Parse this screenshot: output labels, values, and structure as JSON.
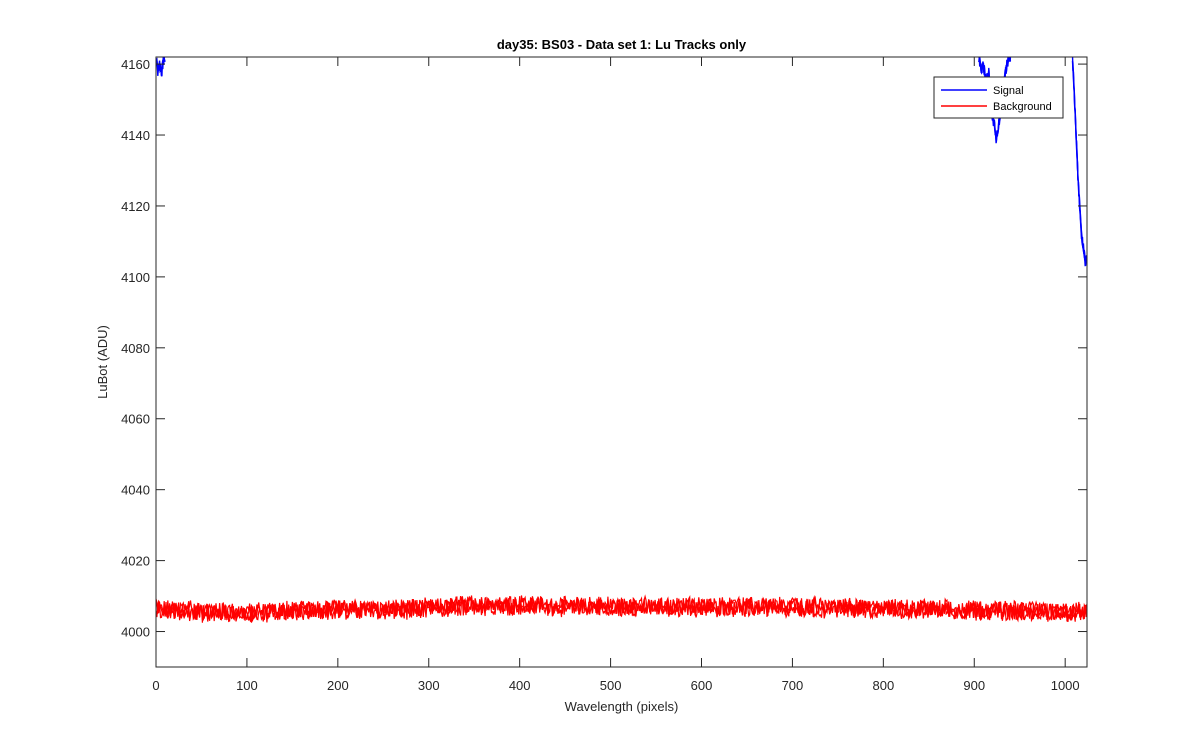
{
  "chart_data": {
    "type": "line",
    "title": "day35: BS03 - Data set 1: Lu Tracks only",
    "xlabel": "Wavelength (pixels)",
    "ylabel": "LuBot (ADU)",
    "xlim": [
      0,
      1024
    ],
    "ylim": [
      3990,
      4162
    ],
    "xticks": [
      0,
      100,
      200,
      300,
      400,
      500,
      600,
      700,
      800,
      900,
      1000
    ],
    "yticks": [
      4000,
      4020,
      4040,
      4060,
      4080,
      4100,
      4120,
      4140,
      4160
    ],
    "grid": false,
    "legend_position": "top-right",
    "series": [
      {
        "name": "Signal",
        "color": "#0000ff",
        "segments": [
          {
            "x": [
              0,
              2,
              4,
              6,
              8,
              10
            ],
            "y": [
              4162,
              4158,
              4160,
              4157,
              4161,
              4162
            ]
          },
          {
            "x": [
              905,
              908,
              910,
              913,
              916,
              918,
              920,
              922,
              924,
              926,
              928,
              930,
              932,
              934,
              936,
              938,
              940
            ],
            "y": [
              4162,
              4158,
              4160,
              4155,
              4158,
              4150,
              4145,
              4143,
              4139,
              4141,
              4145,
              4148,
              4153,
              4157,
              4160,
              4162,
              4162
            ]
          },
          {
            "x": [
              1008,
              1010,
              1012,
              1014,
              1016,
              1018,
              1020,
              1022,
              1024
            ],
            "y": [
              4162,
              4152,
              4140,
              4128,
              4120,
              4112,
              4108,
              4104,
              4106
            ]
          }
        ]
      },
      {
        "name": "Background",
        "color": "#ff0000",
        "x": [
          0,
          50,
          100,
          150,
          200,
          250,
          300,
          350,
          400,
          450,
          500,
          550,
          600,
          650,
          700,
          750,
          800,
          850,
          900,
          950,
          1000,
          1024
        ],
        "y": [
          4006.5,
          4005.5,
          4005.2,
          4005.8,
          4006.3,
          4006.0,
          4006.6,
          4007.3,
          4007.5,
          4007.0,
          4007.2,
          4006.9,
          4007.0,
          4006.9,
          4006.9,
          4006.7,
          4006.4,
          4006.2,
          4006.0,
          4005.9,
          4005.6,
          4005.5
        ],
        "noise_amplitude": 2.5
      }
    ]
  }
}
